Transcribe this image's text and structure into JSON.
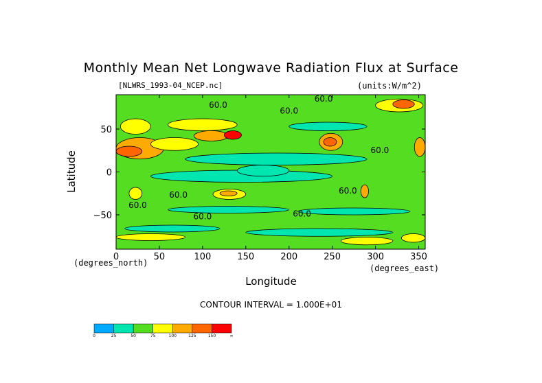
{
  "chart_data": {
    "type": "heatmap",
    "title": "Monthly Mean Net Longwave Radiation Flux at Surface",
    "file_label": "[NLWRS_1993-04_NCEP.nc]",
    "units_label": "(units:W/m^2)",
    "xlabel": "Longitude",
    "ylabel": "Latitude",
    "x_units": "(degrees_east)",
    "y_units": "(degrees_north)",
    "xlim": [
      0,
      357.5
    ],
    "ylim": [
      -90,
      90
    ],
    "x_ticks": [
      "0",
      "50",
      "100",
      "150",
      "200",
      "250",
      "300",
      "350"
    ],
    "x_tick_values": [
      0,
      50,
      100,
      150,
      200,
      250,
      300,
      350
    ],
    "y_ticks": [
      "50",
      "0",
      "−50"
    ],
    "y_tick_values": [
      50,
      0,
      -50
    ],
    "contour_interval": "CONTOUR INTERVAL = 1.000E+01",
    "contour_labels": [
      {
        "text": "60.0",
        "lon": 118,
        "lat": 75
      },
      {
        "text": "60.0",
        "lon": 200,
        "lat": 68
      },
      {
        "text": "60.0",
        "lon": 240,
        "lat": 82
      },
      {
        "text": "60.0",
        "lon": 305,
        "lat": 22
      },
      {
        "text": "60.0",
        "lon": 72,
        "lat": -30
      },
      {
        "text": "60.0",
        "lon": 25,
        "lat": -42
      },
      {
        "text": "60.0",
        "lon": 100,
        "lat": -55
      },
      {
        "text": "60.0",
        "lon": 215,
        "lat": -52
      },
      {
        "text": "60.0",
        "lon": 268,
        "lat": -25
      }
    ],
    "colorbar": {
      "levels": [
        "0",
        "25",
        "50",
        "75",
        "100",
        "125",
        "150",
        "∞"
      ],
      "colors": [
        "#00aaff",
        "#00e6b0",
        "#55dd22",
        "#ffff00",
        "#ffaa00",
        "#ff6600",
        "#ff0000"
      ]
    },
    "regions": [
      {
        "lon": [
          0,
          360
        ],
        "lat": [
          -90,
          90
        ],
        "level": 2
      },
      {
        "lon": [
          80,
          290
        ],
        "lat": [
          8,
          22
        ],
        "level": 1
      },
      {
        "lon": [
          40,
          250
        ],
        "lat": [
          -12,
          2
        ],
        "level": 1
      },
      {
        "lon": [
          140,
          200
        ],
        "lat": [
          -5,
          8
        ],
        "level": 1
      },
      {
        "lon": [
          60,
          200
        ],
        "lat": [
          -48,
          -40
        ],
        "level": 1
      },
      {
        "lon": [
          210,
          340
        ],
        "lat": [
          -50,
          -42
        ],
        "level": 1
      },
      {
        "lon": [
          200,
          290
        ],
        "lat": [
          48,
          58
        ],
        "level": 1
      },
      {
        "lon": [
          10,
          120
        ],
        "lat": [
          -70,
          -62
        ],
        "level": 1
      },
      {
        "lon": [
          150,
          320
        ],
        "lat": [
          -75,
          -66
        ],
        "level": 1
      },
      {
        "lon": [
          5,
          40
        ],
        "lat": [
          44,
          62
        ],
        "level": 3
      },
      {
        "lon": [
          60,
          140
        ],
        "lat": [
          48,
          62
        ],
        "level": 3
      },
      {
        "lon": [
          0,
          55
        ],
        "lat": [
          15,
          40
        ],
        "level": 4
      },
      {
        "lon": [
          0,
          30
        ],
        "lat": [
          18,
          30
        ],
        "level": 5
      },
      {
        "lon": [
          40,
          95
        ],
        "lat": [
          25,
          40
        ],
        "level": 3
      },
      {
        "lon": [
          90,
          130
        ],
        "lat": [
          36,
          48
        ],
        "level": 4
      },
      {
        "lon": [
          125,
          145
        ],
        "lat": [
          38,
          48
        ],
        "level": 6
      },
      {
        "lon": [
          235,
          262
        ],
        "lat": [
          25,
          45
        ],
        "level": 4
      },
      {
        "lon": [
          240,
          255
        ],
        "lat": [
          30,
          40
        ],
        "level": 5
      },
      {
        "lon": [
          345,
          360
        ],
        "lat": [
          18,
          40
        ],
        "level": 4
      },
      {
        "lon": [
          112,
          150
        ],
        "lat": [
          -32,
          -20
        ],
        "level": 3
      },
      {
        "lon": [
          120,
          140
        ],
        "lat": [
          -28,
          -22
        ],
        "level": 4
      },
      {
        "lon": [
          15,
          30
        ],
        "lat": [
          -32,
          -18
        ],
        "level": 3
      },
      {
        "lon": [
          283,
          292
        ],
        "lat": [
          -30,
          -15
        ],
        "level": 4
      },
      {
        "lon": [
          300,
          355
        ],
        "lat": [
          70,
          85
        ],
        "level": 3
      },
      {
        "lon": [
          320,
          345
        ],
        "lat": [
          74,
          84
        ],
        "level": 5
      },
      {
        "lon": [
          0,
          80
        ],
        "lat": [
          -80,
          -72
        ],
        "level": 3
      },
      {
        "lon": [
          260,
          320
        ],
        "lat": [
          -85,
          -76
        ],
        "level": 3
      },
      {
        "lon": [
          330,
          360
        ],
        "lat": [
          -82,
          -72
        ],
        "level": 3
      }
    ]
  }
}
